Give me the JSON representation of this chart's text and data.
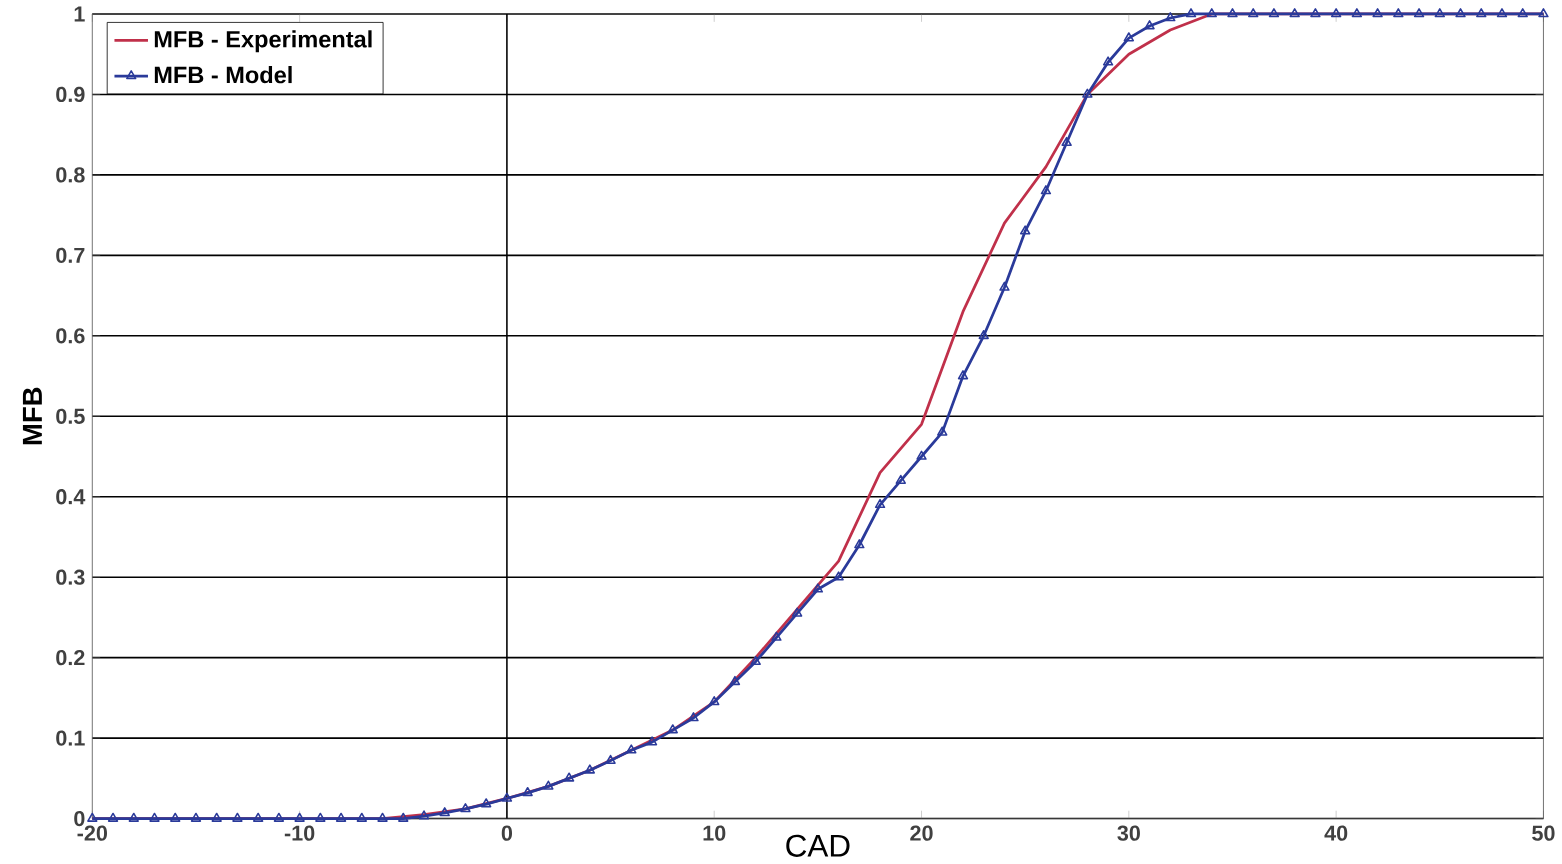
{
  "chart_data": {
    "type": "line",
    "xlabel": "CAD",
    "ylabel": "MFB",
    "xlim": [
      -20,
      50
    ],
    "xticks": [
      -20,
      -10,
      0,
      10,
      20,
      30,
      40,
      50
    ],
    "ylim": [
      0,
      1
    ],
    "yticks": [
      0,
      0.1,
      0.2,
      0.3,
      0.4,
      0.5,
      0.6,
      0.7,
      0.8,
      0.9,
      1
    ],
    "grid": "y",
    "legend": "top left",
    "ref_lines": [
      {
        "axis": "x",
        "value": 0,
        "color": "#000000"
      }
    ],
    "series": [
      {
        "name": "MFB - Experimental",
        "color": "#c0304a",
        "marker": "none",
        "x": [
          -20,
          -10,
          -6,
          -4,
          -2,
          0,
          2,
          4,
          6,
          8,
          10,
          12,
          14,
          16,
          18,
          20,
          22,
          24,
          26,
          28,
          30,
          32,
          34,
          40,
          50
        ],
        "values": [
          0,
          0,
          0,
          0.005,
          0.012,
          0.025,
          0.04,
          0.06,
          0.085,
          0.11,
          0.145,
          0.2,
          0.26,
          0.32,
          0.43,
          0.49,
          0.63,
          0.74,
          0.81,
          0.9,
          0.95,
          0.98,
          1,
          1,
          1
        ]
      },
      {
        "name": "MFB - Model",
        "color": "#2a3a9a",
        "marker": "triangle",
        "x": [
          -20,
          -19,
          -18,
          -17,
          -16,
          -15,
          -14,
          -13,
          -12,
          -11,
          -10,
          -9,
          -8,
          -7,
          -6,
          -5,
          -4,
          -3,
          -2,
          -1,
          0,
          1,
          2,
          3,
          4,
          5,
          6,
          7,
          8,
          9,
          10,
          11,
          12,
          13,
          14,
          15,
          16,
          17,
          18,
          19,
          20,
          21,
          22,
          23,
          24,
          25,
          26,
          27,
          28,
          29,
          30,
          31,
          32,
          33,
          34,
          35,
          36,
          37,
          38,
          39,
          40,
          41,
          42,
          43,
          44,
          45,
          46,
          47,
          48,
          49,
          50
        ],
        "values": [
          0,
          0,
          0,
          0,
          0,
          0,
          0,
          0,
          0,
          0,
          0,
          0,
          0,
          0,
          0,
          0,
          0.003,
          0.007,
          0.012,
          0.018,
          0.025,
          0.032,
          0.04,
          0.05,
          0.06,
          0.072,
          0.085,
          0.095,
          0.11,
          0.125,
          0.145,
          0.17,
          0.195,
          0.225,
          0.255,
          0.285,
          0.3,
          0.34,
          0.39,
          0.42,
          0.45,
          0.48,
          0.55,
          0.6,
          0.66,
          0.73,
          0.78,
          0.84,
          0.9,
          0.94,
          0.97,
          0.985,
          0.995,
          1,
          1,
          1,
          1,
          1,
          1,
          1,
          1,
          1,
          1,
          1,
          1,
          1,
          1,
          1,
          1,
          1,
          1
        ]
      }
    ]
  }
}
